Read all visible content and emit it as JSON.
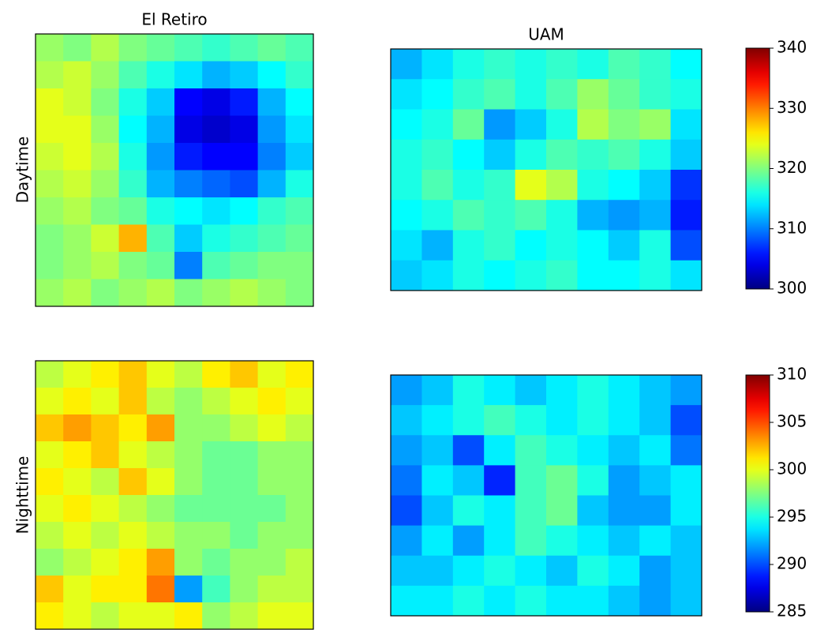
{
  "chart_data": [
    {
      "type": "heatmap",
      "ylabel": "Daytime",
      "colormap": "jet",
      "zlim": [
        300,
        340
      ],
      "zticks": [
        300,
        310,
        320,
        330,
        340
      ],
      "panels": [
        {
          "title": "El Retiro",
          "z": [
            [
              321,
              320,
              322,
              320,
              319,
              318,
              317,
              318,
              319,
              318
            ],
            [
              322,
              323,
              321,
              318,
              316,
              314,
              312,
              313,
              315,
              317
            ],
            [
              324,
              323,
              320,
              316,
              313,
              305,
              304,
              306,
              312,
              315
            ],
            [
              324,
              324,
              321,
              315,
              312,
              304,
              303,
              304,
              311,
              314
            ],
            [
              323,
              324,
              322,
              316,
              311,
              306,
              305,
              305,
              310,
              313
            ],
            [
              322,
              323,
              321,
              317,
              312,
              310,
              309,
              308,
              312,
              316
            ],
            [
              321,
              322,
              320,
              319,
              316,
              315,
              314,
              315,
              317,
              318
            ],
            [
              320,
              321,
              323,
              328,
              318,
              313,
              316,
              317,
              318,
              319
            ],
            [
              320,
              321,
              322,
              320,
              319,
              310,
              318,
              319,
              320,
              320
            ],
            [
              321,
              322,
              320,
              321,
              322,
              320,
              321,
              322,
              321,
              320
            ]
          ]
        },
        {
          "title": "UAM",
          "z": [
            [
              312,
              314,
              316,
              317,
              316,
              317,
              316,
              318,
              317,
              315
            ],
            [
              314,
              315,
              317,
              318,
              316,
              318,
              321,
              319,
              317,
              316
            ],
            [
              315,
              316,
              319,
              311,
              313,
              316,
              322,
              320,
              321,
              314
            ],
            [
              316,
              317,
              315,
              313,
              316,
              318,
              317,
              318,
              316,
              313
            ],
            [
              316,
              318,
              316,
              317,
              324,
              322,
              316,
              315,
              313,
              307
            ],
            [
              315,
              316,
              318,
              317,
              318,
              316,
              312,
              311,
              312,
              306
            ],
            [
              314,
              312,
              316,
              317,
              315,
              316,
              315,
              313,
              316,
              308
            ],
            [
              313,
              314,
              316,
              315,
              316,
              317,
              315,
              315,
              316,
              314
            ]
          ]
        }
      ]
    },
    {
      "type": "heatmap",
      "ylabel": "Nighttime",
      "colormap": "jet",
      "zlim": [
        285,
        310
      ],
      "zticks": [
        285,
        290,
        295,
        300,
        305,
        310
      ],
      "panels": [
        {
          "z": [
            [
              299,
              300,
              301,
              302,
              300,
              299,
              301,
              302,
              300,
              301
            ],
            [
              300,
              301,
              300,
              302,
              299,
              298,
              299,
              300,
              301,
              300
            ],
            [
              302,
              303,
              302,
              301,
              303,
              298,
              298,
              299,
              300,
              299
            ],
            [
              300,
              301,
              302,
              300,
              299,
              298,
              297,
              297,
              298,
              298
            ],
            [
              301,
              300,
              299,
              302,
              300,
              298,
              297,
              297,
              298,
              298
            ],
            [
              300,
              301,
              300,
              299,
              298,
              297,
              297,
              297,
              297,
              298
            ],
            [
              299,
              300,
              299,
              300,
              299,
              298,
              298,
              297,
              298,
              298
            ],
            [
              298,
              299,
              300,
              301,
              303,
              298,
              297,
              298,
              298,
              299
            ],
            [
              302,
              300,
              301,
              301,
              304,
              292,
              296,
              298,
              299,
              299
            ],
            [
              301,
              300,
              299,
              300,
              300,
              301,
              298,
              299,
              300,
              300
            ]
          ]
        },
        {
          "z": [
            [
              292,
              293,
              295,
              294,
              293,
              294,
              295,
              294,
              293,
              292
            ],
            [
              293,
              294,
              295,
              296,
              295,
              294,
              295,
              294,
              293,
              290
            ],
            [
              292,
              293,
              290,
              294,
              296,
              295,
              294,
              293,
              294,
              291
            ],
            [
              291,
              294,
              293,
              289,
              296,
              297,
              295,
              292,
              293,
              294
            ],
            [
              290,
              293,
              295,
              294,
              296,
              297,
              293,
              292,
              292,
              294
            ],
            [
              292,
              294,
              292,
              294,
              296,
              295,
              294,
              293,
              294,
              293
            ],
            [
              293,
              293,
              294,
              295,
              294,
              293,
              295,
              294,
              292,
              293
            ],
            [
              294,
              294,
              295,
              294,
              295,
              294,
              294,
              293,
              292,
              293
            ]
          ]
        }
      ]
    }
  ]
}
